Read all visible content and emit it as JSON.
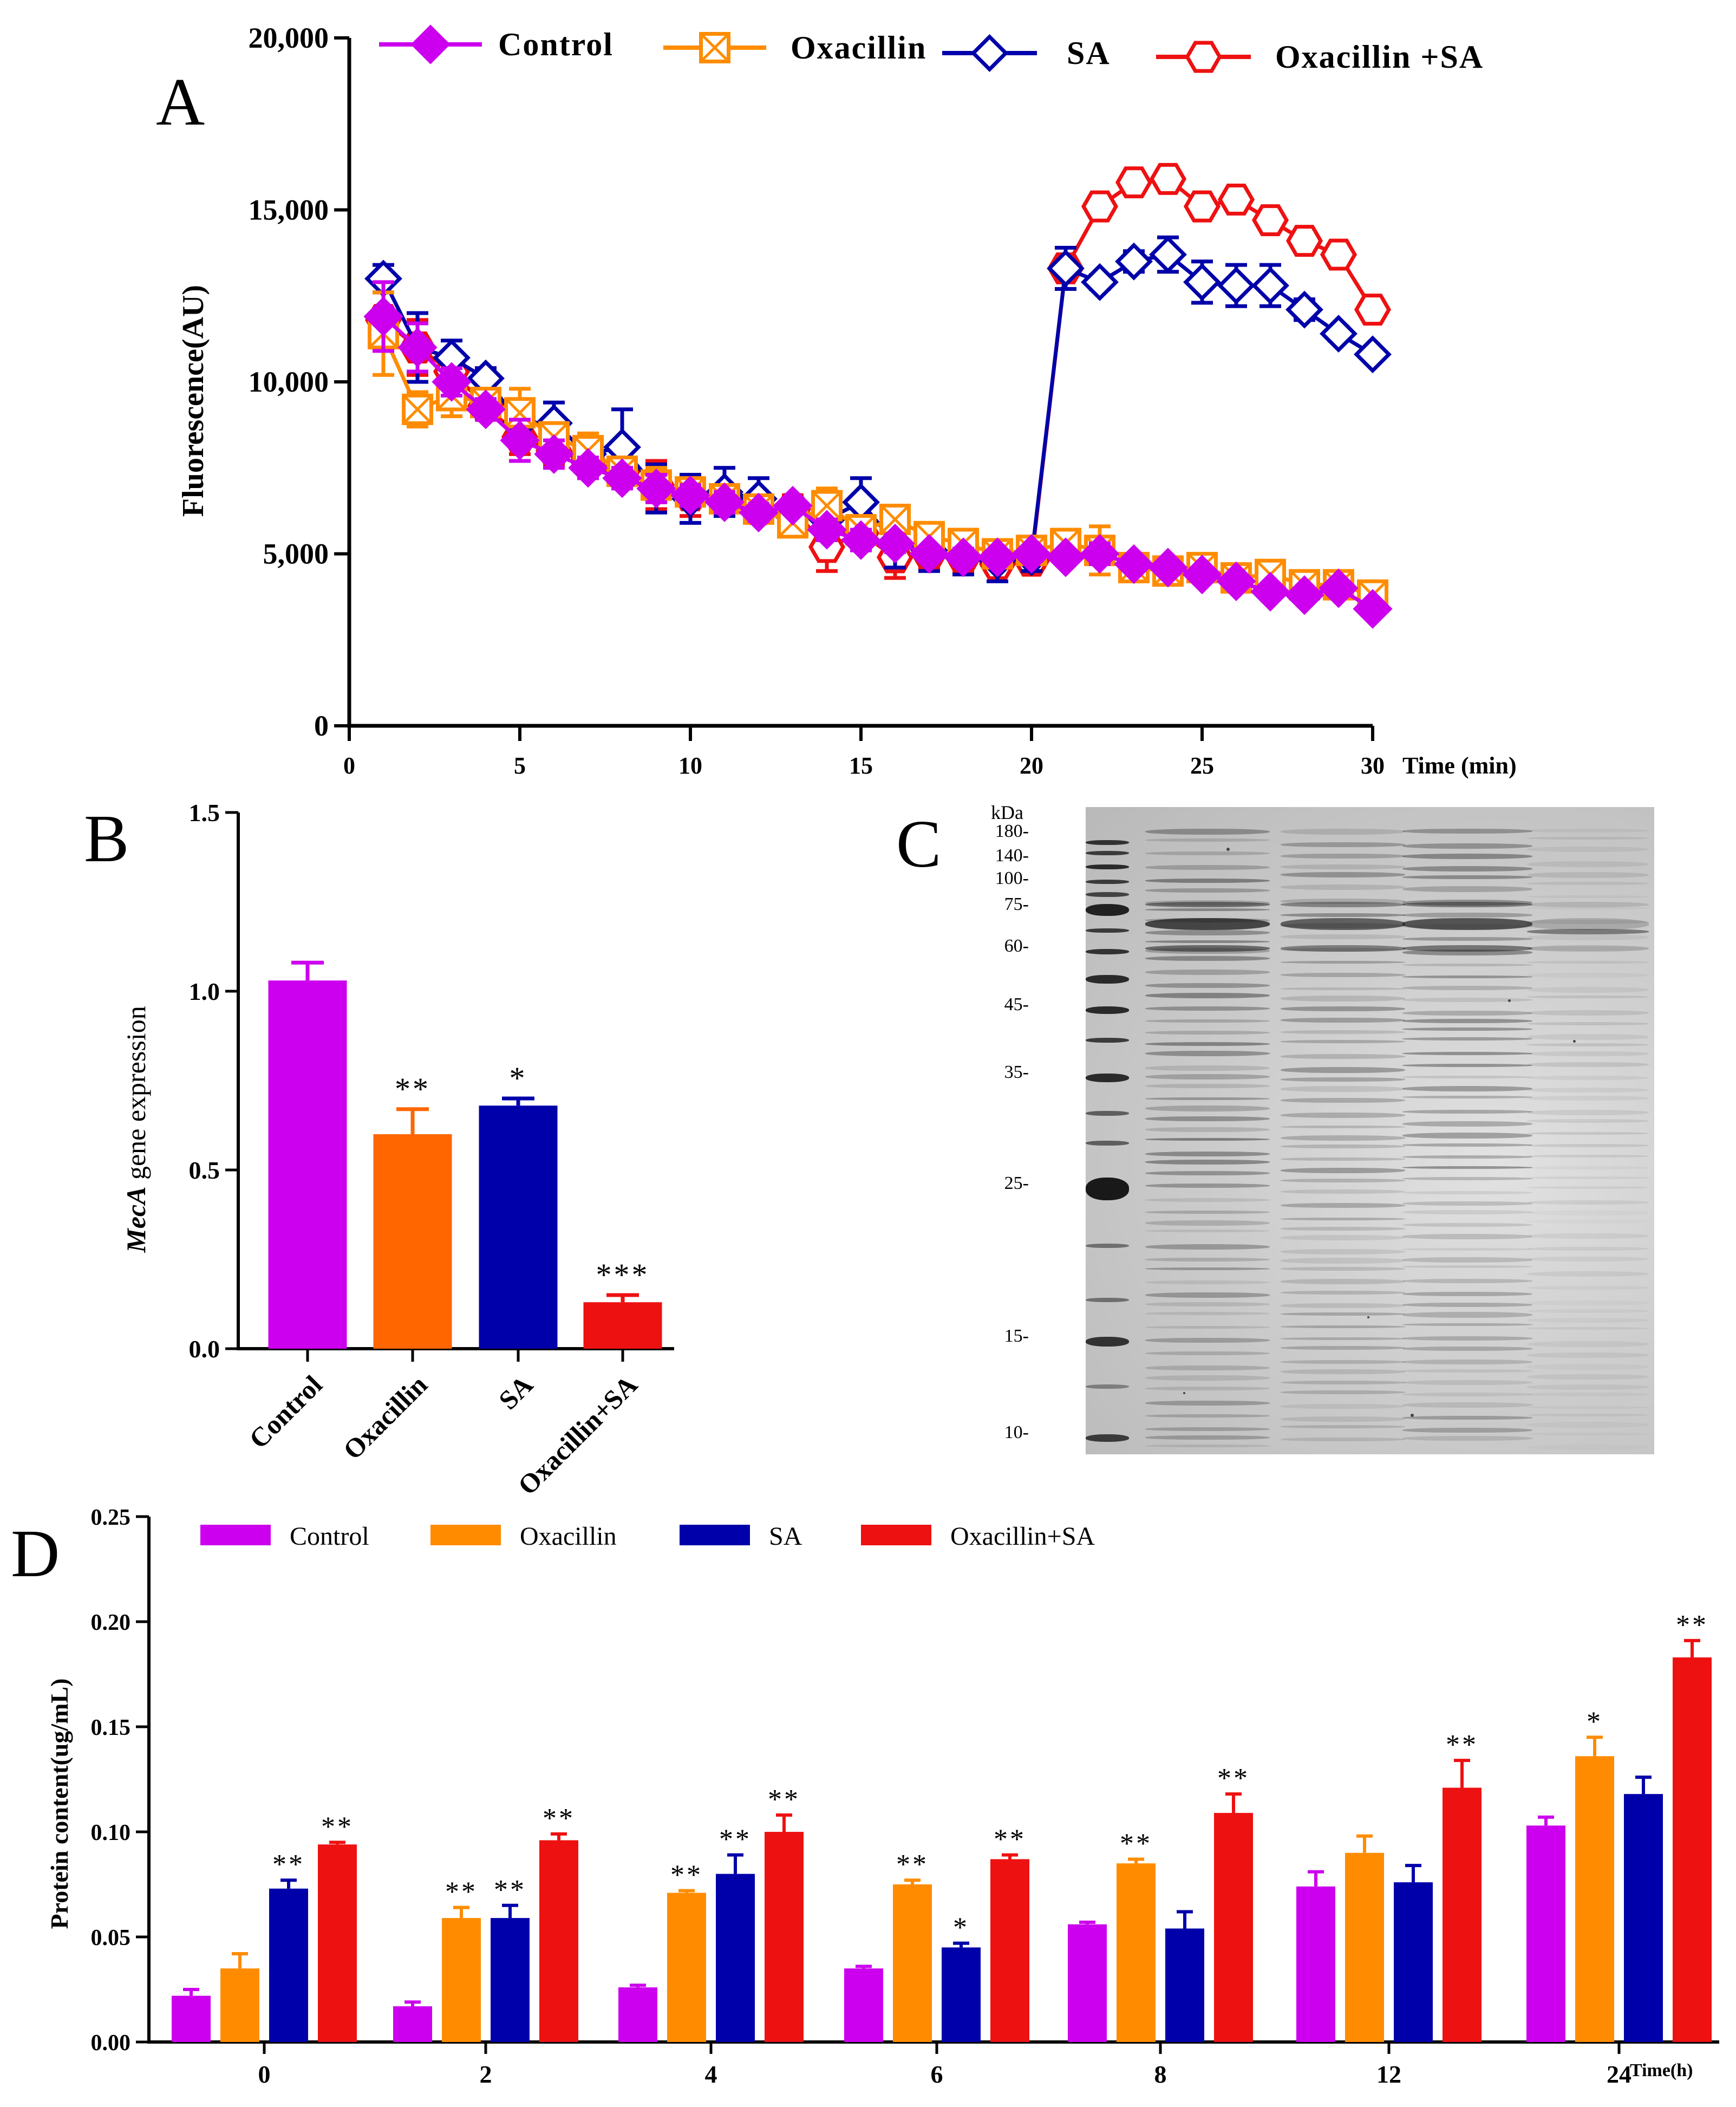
{
  "colors": {
    "control": "#cc00ee",
    "oxacillin": "#ff6600",
    "oxacillin_d": "#ff8c00",
    "sa": "#0000aa",
    "oxa_sa": "#ee1111",
    "axis": "#000000"
  },
  "panel_a": {
    "letter": "A",
    "chart_data": {
      "type": "line",
      "ylabel": "Fluorescence(AU)",
      "xlabel": "Time (min)",
      "xlim": [
        0,
        30
      ],
      "ylim": [
        0,
        20000
      ],
      "xticks": [
        0,
        5,
        10,
        15,
        20,
        25,
        30
      ],
      "yticks": [
        0,
        5000,
        10000,
        15000,
        20000
      ],
      "ytick_labels": [
        "0",
        "5,000",
        "10,000",
        "15,000",
        "20,000"
      ],
      "legend": {
        "position": "top",
        "entries": [
          "Control",
          "Oxacillin",
          "SA",
          "Oxacillin +SA"
        ]
      },
      "series": [
        {
          "name": "Control",
          "marker": "filled-diamond",
          "x": [
            1,
            2,
            3,
            4,
            5,
            6,
            7,
            8,
            9,
            10,
            11,
            12,
            13,
            14,
            15,
            16,
            17,
            18,
            19,
            20,
            21,
            22,
            23,
            24,
            25,
            26,
            27,
            28,
            29,
            30
          ],
          "y": [
            11900,
            11000,
            10000,
            9200,
            8300,
            7900,
            7500,
            7200,
            6900,
            6700,
            6500,
            6200,
            6400,
            5700,
            5400,
            5300,
            5000,
            4900,
            4900,
            5000,
            4900,
            5000,
            4700,
            4600,
            4400,
            4200,
            3900,
            3800,
            4000,
            3400
          ],
          "err": [
            1000,
            700,
            400,
            300,
            600,
            400,
            300,
            300,
            400,
            300,
            300,
            250,
            200,
            300,
            300,
            250,
            200,
            250,
            200,
            200,
            150,
            300,
            200,
            150,
            150,
            150,
            150,
            150,
            200,
            150
          ]
        },
        {
          "name": "Oxacillin",
          "marker": "square-x",
          "x": [
            1,
            2,
            3,
            4,
            5,
            6,
            7,
            8,
            9,
            10,
            11,
            12,
            13,
            14,
            15,
            16,
            17,
            18,
            19,
            20,
            21,
            22,
            23,
            24,
            25,
            26,
            27,
            28,
            29,
            30
          ],
          "y": [
            11400,
            9200,
            9600,
            9400,
            9100,
            8400,
            8000,
            7400,
            7000,
            6800,
            6600,
            6300,
            5900,
            6400,
            5700,
            6000,
            5500,
            5300,
            5000,
            5100,
            5300,
            5100,
            4600,
            4500,
            4600,
            4300,
            4400,
            4100,
            4100,
            3800
          ],
          "err": [
            1200,
            500,
            600,
            400,
            700,
            400,
            500,
            400,
            500,
            400,
            400,
            300,
            300,
            500,
            400,
            400,
            300,
            300,
            300,
            300,
            300,
            700,
            300,
            300,
            300,
            250,
            250,
            250,
            250,
            250
          ]
        },
        {
          "name": "SA",
          "marker": "open-diamond",
          "x": [
            1,
            2,
            3,
            4,
            5,
            6,
            7,
            8,
            9,
            10,
            11,
            12,
            13,
            14,
            15,
            16,
            17,
            18,
            19,
            20,
            21,
            22,
            23,
            24,
            25,
            26,
            27,
            28,
            29,
            30
          ],
          "y": [
            13000,
            11000,
            10700,
            10100,
            8800,
            8800,
            7900,
            8100,
            6900,
            6600,
            6800,
            6600,
            6100,
            6000,
            6500,
            5300,
            5100,
            4900,
            4800,
            4900,
            13300,
            12900,
            13500,
            13700,
            12900,
            12800,
            12800,
            12100,
            11400,
            10800
          ],
          "err": [
            400,
            1000,
            500,
            300,
            500,
            600,
            500,
            1100,
            700,
            700,
            700,
            600,
            400,
            600,
            700,
            700,
            600,
            500,
            600,
            400,
            600,
            200,
            300,
            500,
            600,
            600,
            600,
            300,
            200,
            150
          ]
        },
        {
          "name": "Oxacillin +SA",
          "marker": "open-hexagon",
          "x": [
            1,
            2,
            3,
            4,
            5,
            6,
            7,
            8,
            9,
            10,
            11,
            12,
            13,
            14,
            15,
            16,
            17,
            18,
            19,
            20,
            21,
            22,
            23,
            24,
            25,
            26,
            27,
            28,
            29,
            30
          ],
          "y": [
            11800,
            11000,
            10300,
            9300,
            8400,
            8000,
            7700,
            7400,
            7000,
            6700,
            6600,
            6300,
            6300,
            5200,
            5600,
            4900,
            5000,
            4900,
            4700,
            4800,
            13300,
            15100,
            15800,
            15900,
            15100,
            15300,
            14700,
            14100,
            13700,
            12100
          ],
          "err": [
            800,
            800,
            500,
            400,
            500,
            400,
            500,
            300,
            700,
            600,
            400,
            400,
            400,
            700,
            400,
            600,
            400,
            400,
            300,
            300,
            300,
            200,
            150,
            150,
            150,
            150,
            150,
            150,
            150,
            150
          ]
        }
      ]
    }
  },
  "panel_b": {
    "letter": "B",
    "chart_data": {
      "type": "bar",
      "ylabel_italic": "MecA",
      "ylabel_rest": " gene expression",
      "ylim": [
        0,
        1.5
      ],
      "yticks": [
        0,
        0.5,
        1.0,
        1.5
      ],
      "ytick_labels": [
        "0.0",
        "0.5",
        "1.0",
        "1.5"
      ],
      "categories": [
        "Control",
        "Oxacillin",
        "SA",
        "Oxacillin+SA"
      ],
      "values": [
        1.03,
        0.6,
        0.68,
        0.13
      ],
      "err": [
        0.05,
        0.07,
        0.02,
        0.02
      ],
      "annotations": [
        "",
        "**",
        "*",
        "***"
      ]
    }
  },
  "panel_c": {
    "letter": "C",
    "unit": "kDa",
    "markers": [
      "180-",
      "140-",
      "100-",
      "75-",
      "60-",
      "45-",
      "35-",
      "25-",
      "15-",
      "10-"
    ]
  },
  "panel_d": {
    "letter": "D",
    "chart_data": {
      "type": "bar",
      "ylabel": "Protein content(ug/mL)",
      "xlabel": "Time(h)",
      "ylim": [
        0,
        0.25
      ],
      "yticks": [
        0,
        0.05,
        0.1,
        0.15,
        0.2,
        0.25
      ],
      "ytick_labels": [
        "0.00",
        "0.05",
        "0.10",
        "0.15",
        "0.20",
        "0.25"
      ],
      "categories": [
        "0",
        "2",
        "4",
        "6",
        "8",
        "12",
        "24"
      ],
      "legend": {
        "position": "top",
        "entries": [
          "Control",
          "Oxacillin",
          "SA",
          "Oxacillin+SA"
        ]
      },
      "series": [
        {
          "name": "Control",
          "values": [
            0.022,
            0.017,
            0.026,
            0.035,
            0.056,
            0.074,
            0.103
          ],
          "err": [
            0.003,
            0.002,
            0.001,
            0.001,
            0.001,
            0.007,
            0.004
          ],
          "ann": [
            "",
            "",
            "",
            "",
            "",
            "",
            ""
          ]
        },
        {
          "name": "Oxacillin",
          "values": [
            0.035,
            0.059,
            0.071,
            0.075,
            0.085,
            0.09,
            0.136
          ],
          "err": [
            0.007,
            0.005,
            0.001,
            0.002,
            0.002,
            0.008,
            0.009
          ],
          "ann": [
            "",
            "**",
            "**",
            "**",
            "**",
            "",
            "*"
          ]
        },
        {
          "name": "SA",
          "values": [
            0.073,
            0.059,
            0.08,
            0.045,
            0.054,
            0.076,
            0.118
          ],
          "err": [
            0.004,
            0.006,
            0.009,
            0.002,
            0.008,
            0.008,
            0.008
          ],
          "ann": [
            "**",
            "**",
            "**",
            "*",
            "",
            "",
            ""
          ]
        },
        {
          "name": "Oxacillin+SA",
          "values": [
            0.094,
            0.096,
            0.1,
            0.087,
            0.109,
            0.121,
            0.183
          ],
          "err": [
            0.001,
            0.003,
            0.008,
            0.002,
            0.009,
            0.013,
            0.008
          ],
          "ann": [
            "**",
            "**",
            "**",
            "**",
            "**",
            "**",
            "**"
          ]
        }
      ]
    }
  }
}
